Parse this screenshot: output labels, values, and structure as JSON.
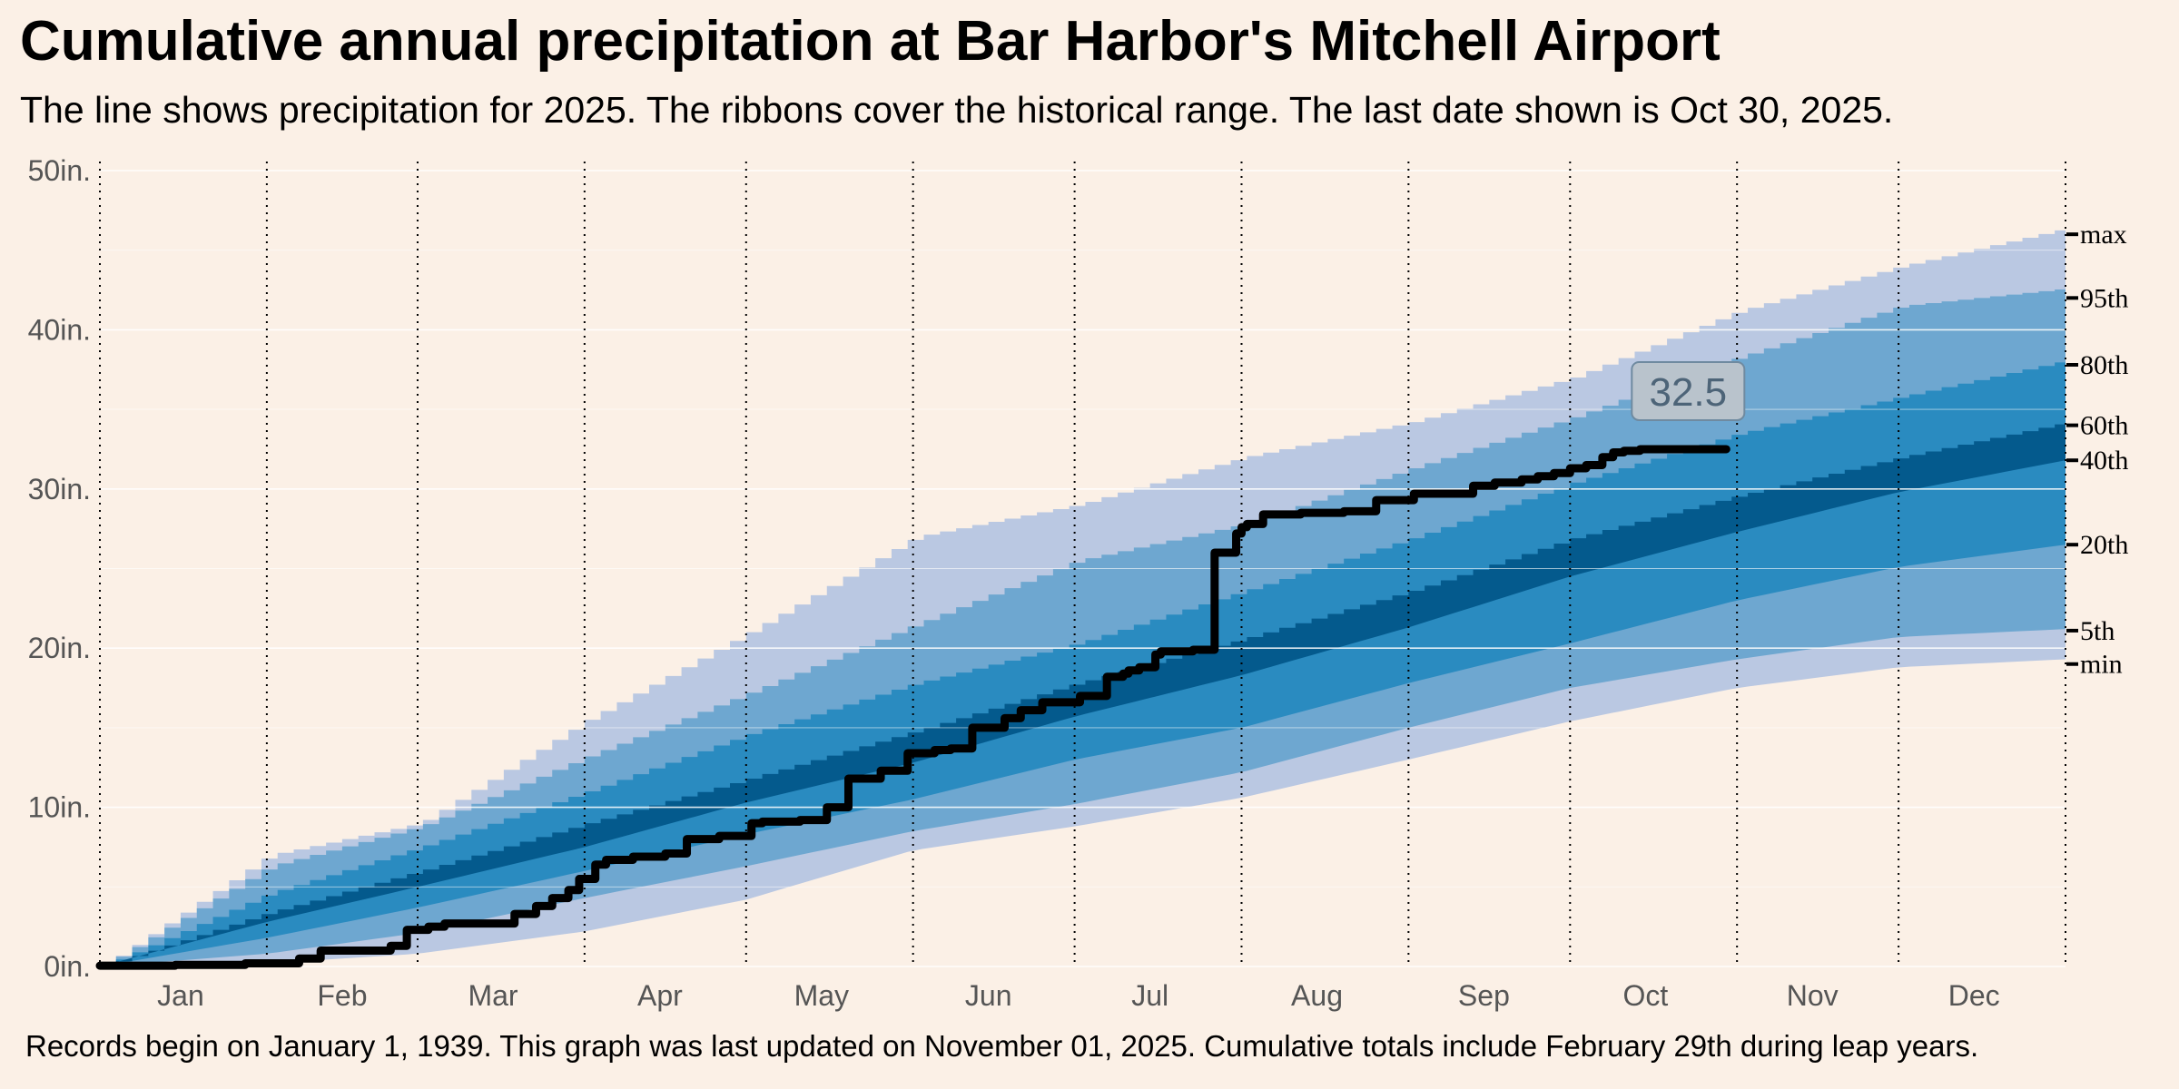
{
  "header": {
    "title": "Cumulative annual precipitation at Bar Harbor's Mitchell Airport",
    "subtitle": "The line shows precipitation for 2025. The ribbons cover the historical range. The last date shown is Oct 30, 2025."
  },
  "footer": {
    "caption": "Records begin on January 1, 1939. This graph was last updated on November 01, 2025. Cumulative totals include February 29th during leap years."
  },
  "colors": {
    "background": "#fbf0e6",
    "band_outer": "#bac8e2",
    "band_mid": "#6ea7d0",
    "band_inner": "#2a8bc0",
    "band_core": "#045a8d",
    "line_2025": "#000000",
    "grid": "#ffffff"
  },
  "chart_data": {
    "type": "area",
    "ylim": [
      0,
      50
    ],
    "yticks": [
      0,
      10,
      20,
      30,
      40,
      50
    ],
    "ytick_labels": [
      "0in.",
      "10in.",
      "20in.",
      "30in.",
      "40in.",
      "50in."
    ],
    "xlim": [
      1,
      366
    ],
    "months": [
      "Jan",
      "Feb",
      "Mar",
      "Apr",
      "May",
      "Jun",
      "Jul",
      "Aug",
      "Sep",
      "Oct",
      "Nov",
      "Dec"
    ],
    "month_mid_days": [
      16,
      46,
      74,
      105,
      135,
      166,
      196,
      227,
      258,
      288,
      319,
      349
    ],
    "month_start_days": [
      1,
      32,
      60,
      91,
      121,
      152,
      182,
      213,
      244,
      274,
      305,
      335,
      366
    ],
    "percentile_days": [
      1,
      32,
      60,
      91,
      121,
      152,
      182,
      213,
      244,
      274,
      305,
      335,
      366
    ],
    "percentiles": {
      "min": [
        0,
        0.2,
        0.8,
        2.2,
        4.2,
        7.3,
        8.8,
        10.6,
        13.0,
        15.4,
        17.5,
        18.8,
        19.3
      ],
      "p5": [
        0,
        0.8,
        2.1,
        4.3,
        6.3,
        8.5,
        10.2,
        12.2,
        15.0,
        17.5,
        19.3,
        20.7,
        21.2
      ],
      "p20": [
        0,
        1.8,
        3.7,
        6.0,
        8.3,
        10.5,
        13.0,
        15.0,
        17.8,
        20.3,
        23.0,
        25.1,
        26.5
      ],
      "p40": [
        0,
        2.8,
        5.0,
        7.5,
        10.3,
        12.8,
        15.7,
        18.3,
        21.3,
        24.5,
        27.3,
        29.8,
        31.8
      ],
      "p60": [
        0,
        3.4,
        6.0,
        9.0,
        11.8,
        14.8,
        17.8,
        20.6,
        23.6,
        26.9,
        29.6,
        32.0,
        34.2
      ],
      "p80": [
        0,
        4.6,
        7.5,
        11.0,
        14.6,
        17.8,
        20.3,
        23.6,
        26.9,
        30.4,
        33.5,
        35.8,
        38.1
      ],
      "p95": [
        0,
        6.3,
        8.8,
        13.2,
        17.2,
        21.5,
        25.5,
        27.8,
        31.3,
        34.5,
        38.3,
        41.5,
        42.6
      ],
      "max": [
        0,
        7.0,
        9.0,
        15.5,
        21.0,
        27.0,
        29.0,
        32.0,
        34.2,
        37.0,
        41.2,
        44.0,
        46.4
      ]
    },
    "percentile_labels": [
      {
        "key": "max",
        "label": "max",
        "value": 46.0
      },
      {
        "key": "p95",
        "label": "95th",
        "value": 42.0
      },
      {
        "key": "p80",
        "label": "80th",
        "value": 37.8
      },
      {
        "key": "p60",
        "label": "60th",
        "value": 34.0
      },
      {
        "key": "p40",
        "label": "40th",
        "value": 31.8
      },
      {
        "key": "p20",
        "label": "20th",
        "value": 26.5
      },
      {
        "key": "p5",
        "label": "5th",
        "value": 21.1
      },
      {
        "key": "min",
        "label": "min",
        "value": 19.0
      }
    ],
    "series": [
      {
        "name": "2025",
        "x": [
          1,
          15,
          28,
          38,
          42,
          55,
          58,
          62,
          65,
          78,
          82,
          85,
          88,
          90,
          93,
          95,
          100,
          106,
          110,
          116,
          122,
          124,
          131,
          136,
          140,
          146,
          151,
          156,
          159,
          163,
          169,
          172,
          176,
          183,
          188,
          191,
          192,
          194,
          197,
          198,
          200,
          204,
          208,
          212,
          213,
          214,
          217,
          224,
          232,
          238,
          245,
          256,
          260,
          265,
          268,
          271,
          274,
          277,
          280,
          282,
          284,
          287,
          295,
          298,
          300,
          303
        ],
        "y": [
          0.05,
          0.1,
          0.2,
          0.5,
          1.0,
          1.3,
          2.3,
          2.5,
          2.7,
          3.3,
          3.8,
          4.3,
          4.8,
          5.5,
          6.4,
          6.7,
          6.9,
          7.1,
          8.0,
          8.2,
          9.0,
          9.1,
          9.2,
          10.0,
          11.8,
          12.3,
          13.4,
          13.6,
          13.7,
          15.0,
          15.6,
          16.1,
          16.6,
          17.0,
          18.2,
          18.4,
          18.6,
          18.8,
          19.6,
          19.8,
          19.8,
          19.9,
          26.0,
          27.2,
          27.6,
          27.8,
          28.4,
          28.5,
          28.6,
          29.3,
          29.7,
          30.2,
          30.4,
          30.6,
          30.8,
          31.0,
          31.3,
          31.5,
          32.0,
          32.3,
          32.4,
          32.5,
          32.5,
          32.5,
          32.5,
          32.5
        ]
      }
    ],
    "callout": {
      "label": "32.5",
      "day": 303,
      "value": 32.5
    },
    "grid": true,
    "legend": "none"
  }
}
